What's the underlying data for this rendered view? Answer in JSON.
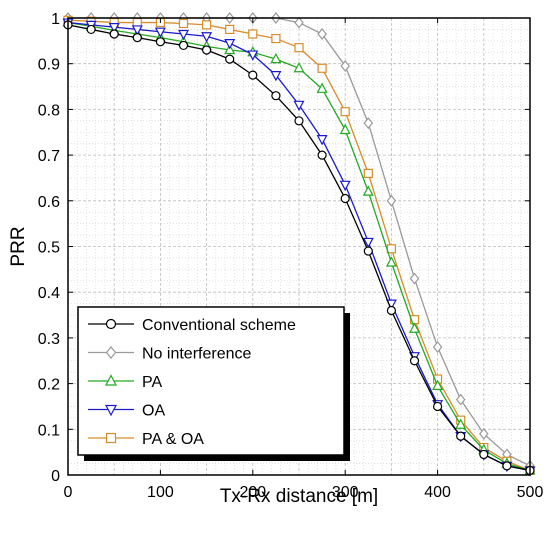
{
  "chart_data": {
    "type": "line",
    "title": "",
    "xlabel": "Tx-Rx distance [m]",
    "ylabel": "PRR",
    "xlim": [
      0,
      500
    ],
    "ylim": [
      0,
      1
    ],
    "x_ticks": [
      "0",
      "100",
      "200",
      "300",
      "400",
      "500"
    ],
    "y_ticks": [
      "0",
      "0.1",
      "0.2",
      "0.3",
      "0.4",
      "0.5",
      "0.6",
      "0.7",
      "0.8",
      "0.9",
      "1"
    ],
    "grid": true,
    "legend_position": "bottom-left",
    "x": [
      0,
      25,
      50,
      75,
      100,
      125,
      150,
      175,
      200,
      225,
      250,
      275,
      300,
      325,
      350,
      375,
      400,
      425,
      450,
      475,
      500
    ],
    "series": [
      {
        "name": "Conventional scheme",
        "color": "#000000",
        "marker": "circle",
        "values": [
          0.985,
          0.975,
          0.965,
          0.957,
          0.948,
          0.94,
          0.93,
          0.91,
          0.875,
          0.83,
          0.775,
          0.7,
          0.605,
          0.49,
          0.36,
          0.25,
          0.15,
          0.085,
          0.045,
          0.02,
          0.01
        ]
      },
      {
        "name": "No interference",
        "color": "#999999",
        "marker": "diamond",
        "values": [
          1.0,
          1.0,
          1.0,
          1.0,
          1.0,
          1.0,
          1.0,
          1.0,
          1.0,
          1.0,
          0.99,
          0.965,
          0.895,
          0.77,
          0.6,
          0.43,
          0.28,
          0.165,
          0.09,
          0.045,
          0.02
        ]
      },
      {
        "name": "PA",
        "color": "#22aa22",
        "marker": "triangle-up",
        "values": [
          0.99,
          0.982,
          0.973,
          0.965,
          0.957,
          0.948,
          0.938,
          0.93,
          0.925,
          0.91,
          0.89,
          0.845,
          0.755,
          0.62,
          0.465,
          0.32,
          0.195,
          0.11,
          0.055,
          0.025,
          0.01
        ]
      },
      {
        "name": "OA",
        "color": "#1a1acc",
        "marker": "triangle-down",
        "values": [
          0.99,
          0.985,
          0.98,
          0.975,
          0.97,
          0.965,
          0.96,
          0.945,
          0.92,
          0.875,
          0.81,
          0.735,
          0.635,
          0.51,
          0.375,
          0.26,
          0.155,
          0.085,
          0.045,
          0.02,
          0.01
        ]
      },
      {
        "name": "PA & OA",
        "color": "#d98c2a",
        "marker": "square",
        "values": [
          0.995,
          0.993,
          0.99,
          0.99,
          0.99,
          0.988,
          0.985,
          0.975,
          0.965,
          0.955,
          0.935,
          0.89,
          0.795,
          0.66,
          0.495,
          0.34,
          0.21,
          0.12,
          0.06,
          0.03,
          0.01
        ]
      }
    ]
  }
}
